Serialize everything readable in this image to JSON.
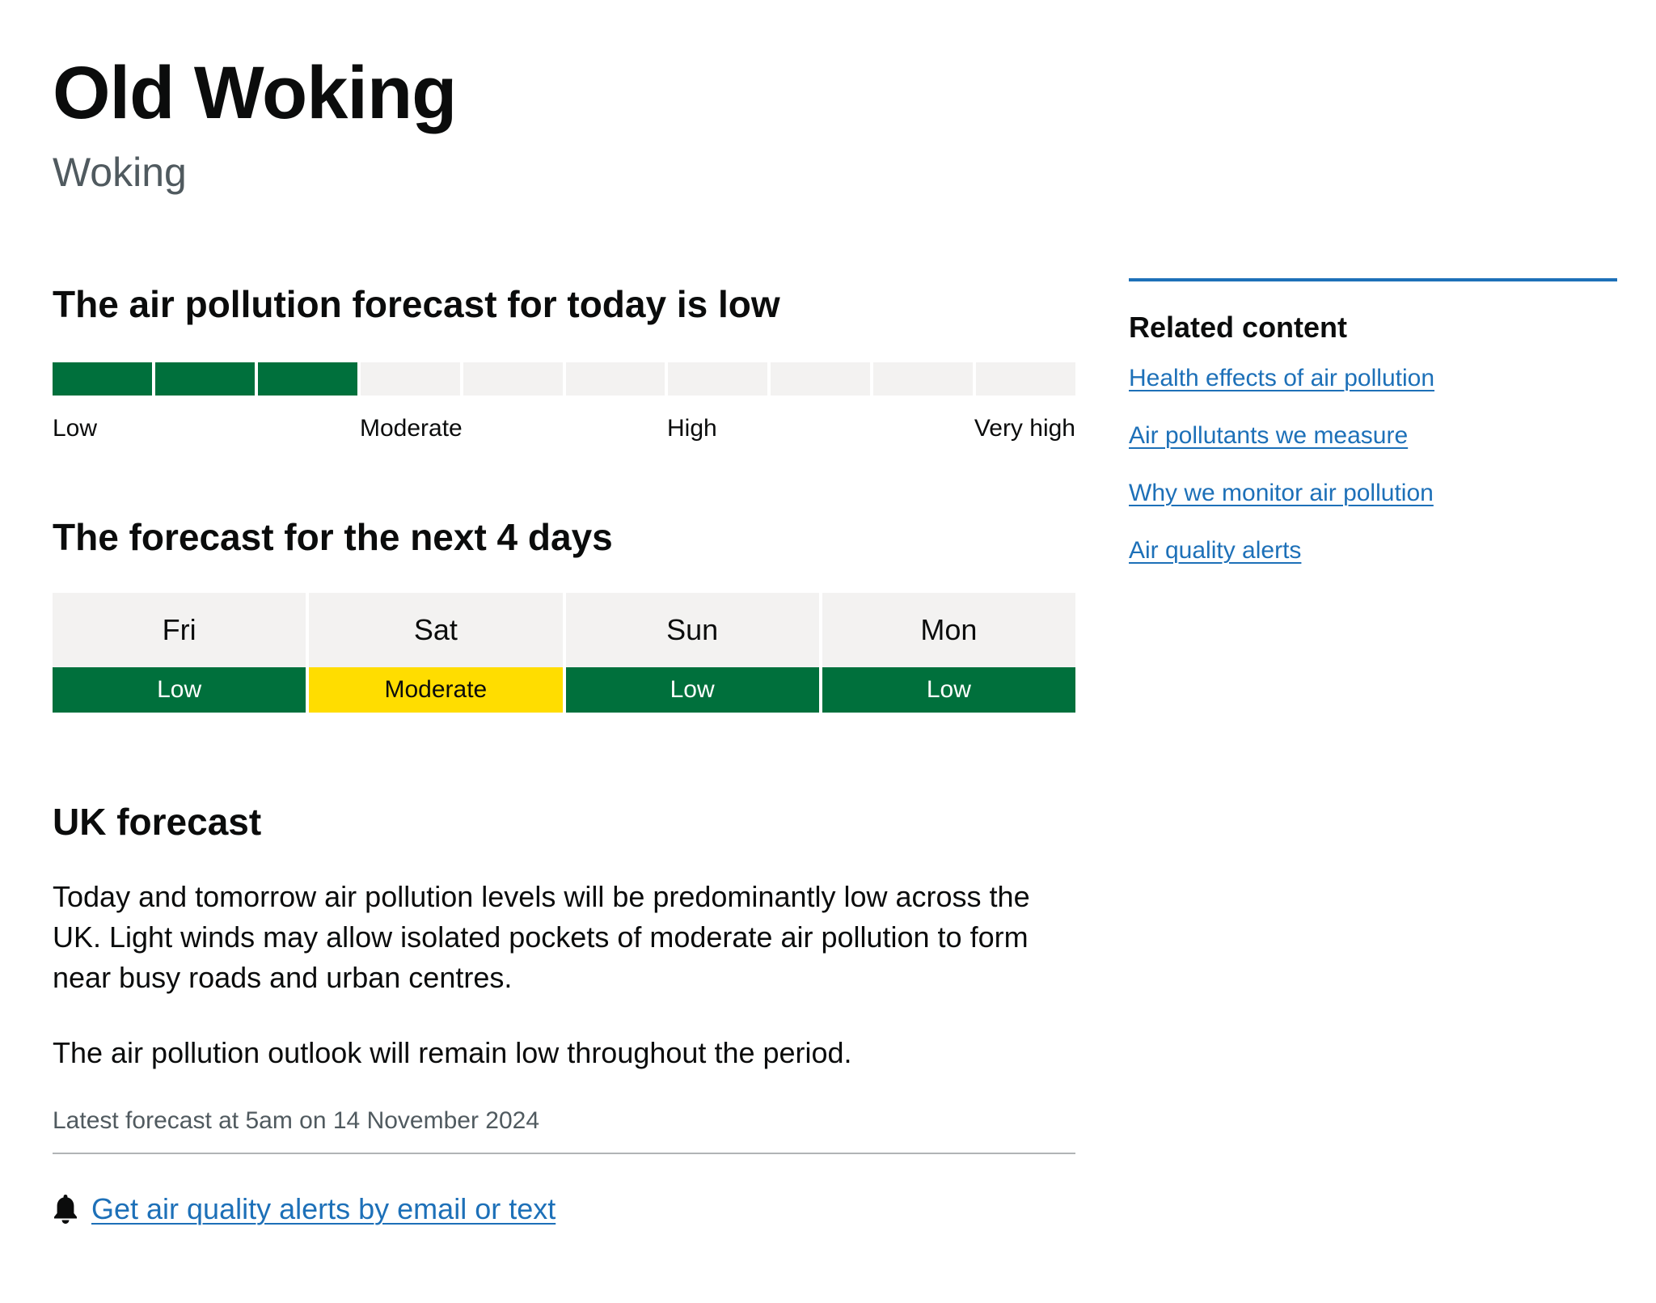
{
  "location": {
    "title": "Old Woking",
    "area": "Woking"
  },
  "today": {
    "heading": "The air pollution forecast for today is low",
    "level_index": 3,
    "level_max": 10,
    "scale_labels": [
      "Low",
      "Moderate",
      "High",
      "Very high"
    ],
    "colors": {
      "active": "#00703c",
      "inactive": "#f3f2f1"
    }
  },
  "next_days": {
    "heading": "The forecast for the next 4 days",
    "days": [
      {
        "day": "Fri",
        "level": "Low"
      },
      {
        "day": "Sat",
        "level": "Moderate"
      },
      {
        "day": "Sun",
        "level": "Low"
      },
      {
        "day": "Mon",
        "level": "Low"
      }
    ],
    "colors": {
      "low": "#00703c",
      "moderate": "#ffdd00"
    }
  },
  "uk_forecast": {
    "heading": "UK forecast",
    "paragraphs": [
      "Today and tomorrow air pollution levels will be predominantly low across the UK. Light winds may allow isolated pockets of moderate air pollution to form near busy roads and urban centres.",
      "The air pollution outlook will remain low throughout the period."
    ],
    "latest": "Latest forecast at 5am on 14 November 2024"
  },
  "alerts": {
    "icon": "bell-icon",
    "link_label": "Get air quality alerts by email or text"
  },
  "related": {
    "heading": "Related content",
    "links": [
      "Health effects of air pollution",
      "Air pollutants we measure",
      "Why we monitor air pollution",
      "Air quality alerts"
    ],
    "accent": "#1d70b8"
  }
}
